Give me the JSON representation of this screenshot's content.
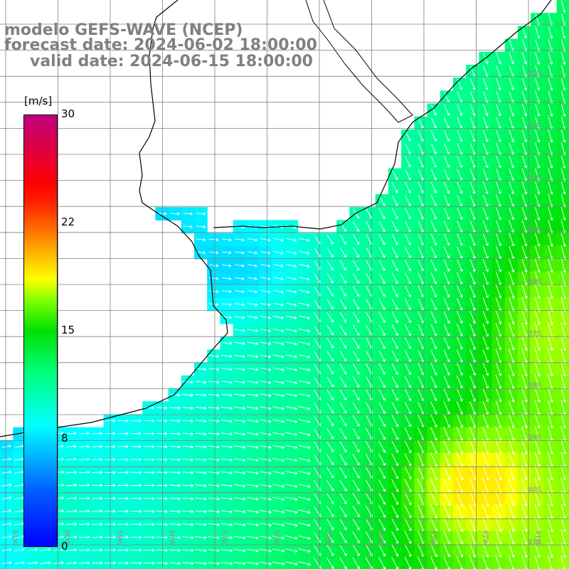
{
  "title": {
    "line1": "modelo GEFS-WAVE (NCEP)",
    "line2": "forecast date: 2024-06-02 18:00:00",
    "line3": "valid date: 2024-06-15 18:00:00"
  },
  "colorbar": {
    "unit": "[m/s]",
    "ticks": [
      "30",
      "22",
      "15",
      "8",
      "0"
    ],
    "min": 0,
    "max": 30
  },
  "map": {
    "lat_labels": [
      "32S",
      "33S",
      "34S",
      "35S",
      "36S",
      "37S",
      "38S",
      "39S",
      "40S",
      "41S"
    ],
    "lon_labels": [
      "61W",
      "60W",
      "59W",
      "58W",
      "57W",
      "56W",
      "55W",
      "54W",
      "53W",
      "52W",
      "51W"
    ],
    "colors": {
      "land": "#ffffff",
      "coast": "#000000",
      "grid": "#808080",
      "arrows": "#ffffff"
    },
    "field": "wind speed",
    "arrow_direction": "towards south-east (offshore)"
  }
}
